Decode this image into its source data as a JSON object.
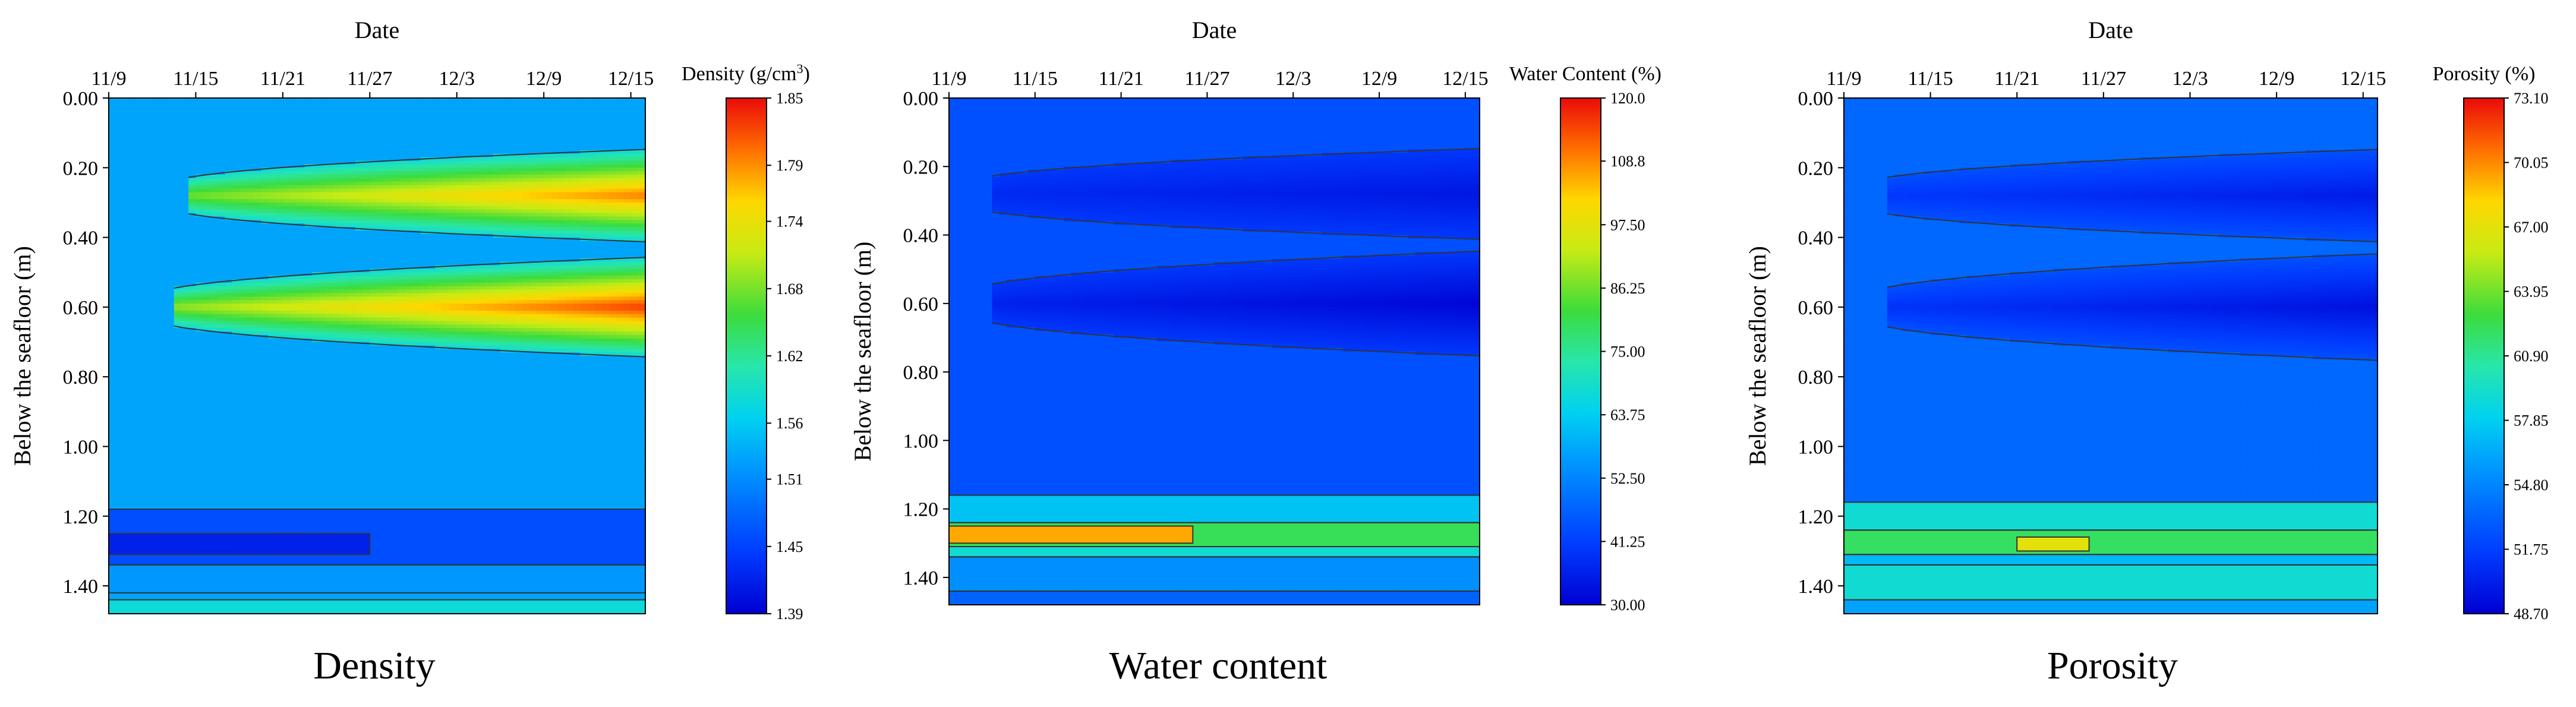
{
  "chart_data": [
    {
      "type": "heatmap",
      "title": "Density",
      "xlabel": "Date",
      "ylabel": "Below the seafloor (m)",
      "x_ticks": [
        "11/9",
        "11/15",
        "11/21",
        "11/27",
        "12/3",
        "12/9",
        "12/15"
      ],
      "x_tick_values": [
        0,
        6,
        12,
        18,
        24,
        30,
        36
      ],
      "xlim": [
        0,
        37
      ],
      "y_ticks": [
        "0.00",
        "0.20",
        "0.40",
        "0.60",
        "0.80",
        "1.00",
        "1.20",
        "1.40"
      ],
      "y_tick_values": [
        0,
        0.2,
        0.4,
        0.6,
        0.8,
        1.0,
        1.2,
        1.4
      ],
      "ylim": [
        0,
        1.48
      ],
      "colorbar": {
        "label_main": "Density (g/cm",
        "label_sup": "3",
        "label_end": ")",
        "ticks": [
          "1.85",
          "1.79",
          "1.74",
          "1.68",
          "1.62",
          "1.56",
          "1.51",
          "1.45",
          "1.39"
        ],
        "tick_values": [
          1.85,
          1.79,
          1.74,
          1.68,
          1.62,
          1.56,
          1.51,
          1.45,
          1.39
        ],
        "range": [
          1.39,
          1.85
        ]
      },
      "background_value": 1.53,
      "features": [
        {
          "kind": "wedge",
          "depth": 0.28,
          "start_day": 5.5,
          "base_value": 1.58,
          "peak_value": 1.8,
          "max_halfwidth": 0.1
        },
        {
          "kind": "wedge",
          "depth": 0.6,
          "start_day": 4.5,
          "base_value": 1.58,
          "peak_value": 1.83,
          "max_halfwidth": 0.11
        },
        {
          "kind": "band",
          "top": 1.18,
          "bottom": 1.34,
          "start_day": 0,
          "end_day": 37,
          "value": 1.46
        },
        {
          "kind": "band",
          "top": 1.25,
          "bottom": 1.31,
          "start_day": 0,
          "end_day": 18,
          "value": 1.42
        },
        {
          "kind": "band",
          "top": 1.34,
          "bottom": 1.42,
          "start_day": 0,
          "end_day": 37,
          "value": 1.52
        },
        {
          "kind": "band",
          "top": 1.44,
          "bottom": 1.48,
          "start_day": 0,
          "end_day": 37,
          "value": 1.58
        }
      ]
    },
    {
      "type": "heatmap",
      "title": "Water content",
      "xlabel": "Date",
      "ylabel": "Below the seafloor (m)",
      "x_ticks": [
        "11/9",
        "11/15",
        "11/21",
        "11/27",
        "12/3",
        "12/9",
        "12/15"
      ],
      "x_tick_values": [
        0,
        6,
        12,
        18,
        24,
        30,
        36
      ],
      "xlim": [
        0,
        37
      ],
      "y_ticks": [
        "0.00",
        "0.20",
        "0.40",
        "0.60",
        "0.80",
        "1.00",
        "1.20",
        "1.40"
      ],
      "y_tick_values": [
        0,
        0.2,
        0.4,
        0.6,
        0.8,
        1.0,
        1.2,
        1.4
      ],
      "ylim": [
        0,
        1.48
      ],
      "colorbar": {
        "label_main": "Water Content (%)",
        "ticks": [
          "120.0",
          "108.8",
          "97.50",
          "86.25",
          "75.00",
          "63.75",
          "52.50",
          "41.25",
          "30.00"
        ],
        "tick_values": [
          120.0,
          108.8,
          97.5,
          86.25,
          75.0,
          63.75,
          52.5,
          41.25,
          30.0
        ],
        "range": [
          30.0,
          120.0
        ]
      },
      "background_value": 44,
      "features": [
        {
          "kind": "wedge",
          "depth": 0.28,
          "start_day": 3,
          "base_value": 40,
          "peak_value": 34,
          "max_halfwidth": 0.1
        },
        {
          "kind": "wedge",
          "depth": 0.6,
          "start_day": 3,
          "base_value": 40,
          "peak_value": 31,
          "max_halfwidth": 0.12
        },
        {
          "kind": "band",
          "top": 1.16,
          "bottom": 1.24,
          "start_day": 0,
          "end_day": 37,
          "value": 62
        },
        {
          "kind": "band",
          "top": 1.24,
          "bottom": 1.31,
          "start_day": 0,
          "end_day": 37,
          "value": 80
        },
        {
          "kind": "band",
          "top": 1.25,
          "bottom": 1.3,
          "start_day": 0,
          "end_day": 17,
          "value": 106
        },
        {
          "kind": "band",
          "top": 1.31,
          "bottom": 1.34,
          "start_day": 0,
          "end_day": 37,
          "value": 68
        },
        {
          "kind": "band",
          "top": 1.34,
          "bottom": 1.44,
          "start_day": 0,
          "end_day": 37,
          "value": 54
        },
        {
          "kind": "band",
          "top": 1.44,
          "bottom": 1.48,
          "start_day": 0,
          "end_day": 37,
          "value": 47
        }
      ]
    },
    {
      "type": "heatmap",
      "title": "Porosity",
      "xlabel": "Date",
      "ylabel": "Below the seafloor (m)",
      "x_ticks": [
        "11/9",
        "11/15",
        "11/21",
        "11/27",
        "12/3",
        "12/9",
        "12/15"
      ],
      "x_tick_values": [
        0,
        6,
        12,
        18,
        24,
        30,
        36
      ],
      "xlim": [
        0,
        37
      ],
      "y_ticks": [
        "0.00",
        "0.20",
        "0.40",
        "0.60",
        "0.80",
        "1.00",
        "1.20",
        "1.40"
      ],
      "y_tick_values": [
        0,
        0.2,
        0.4,
        0.6,
        0.8,
        1.0,
        1.2,
        1.4
      ],
      "ylim": [
        0,
        1.48
      ],
      "colorbar": {
        "label_main": "Porosity (%)",
        "ticks": [
          "73.10",
          "70.05",
          "67.00",
          "63.95",
          "60.90",
          "57.85",
          "54.80",
          "51.75",
          "48.70"
        ],
        "tick_values": [
          73.1,
          70.05,
          67.0,
          63.95,
          60.9,
          57.85,
          54.8,
          51.75,
          48.7
        ],
        "range": [
          48.7,
          73.1
        ]
      },
      "background_value": 53.5,
      "features": [
        {
          "kind": "wedge",
          "depth": 0.28,
          "start_day": 3,
          "base_value": 52.5,
          "peak_value": 50.0,
          "max_halfwidth": 0.1
        },
        {
          "kind": "wedge",
          "depth": 0.6,
          "start_day": 3,
          "base_value": 52.5,
          "peak_value": 49.5,
          "max_halfwidth": 0.12
        },
        {
          "kind": "band",
          "top": 1.16,
          "bottom": 1.24,
          "start_day": 0,
          "end_day": 37,
          "value": 59
        },
        {
          "kind": "band",
          "top": 1.24,
          "bottom": 1.31,
          "start_day": 0,
          "end_day": 37,
          "value": 62
        },
        {
          "kind": "band",
          "top": 1.26,
          "bottom": 1.3,
          "start_day": 12,
          "end_day": 17,
          "value": 67
        },
        {
          "kind": "band",
          "top": 1.31,
          "bottom": 1.34,
          "start_day": 0,
          "end_day": 37,
          "value": 57
        },
        {
          "kind": "band",
          "top": 1.34,
          "bottom": 1.44,
          "start_day": 0,
          "end_day": 37,
          "value": 59
        },
        {
          "kind": "band",
          "top": 1.44,
          "bottom": 1.48,
          "start_day": 0,
          "end_day": 37,
          "value": 56
        }
      ]
    }
  ]
}
